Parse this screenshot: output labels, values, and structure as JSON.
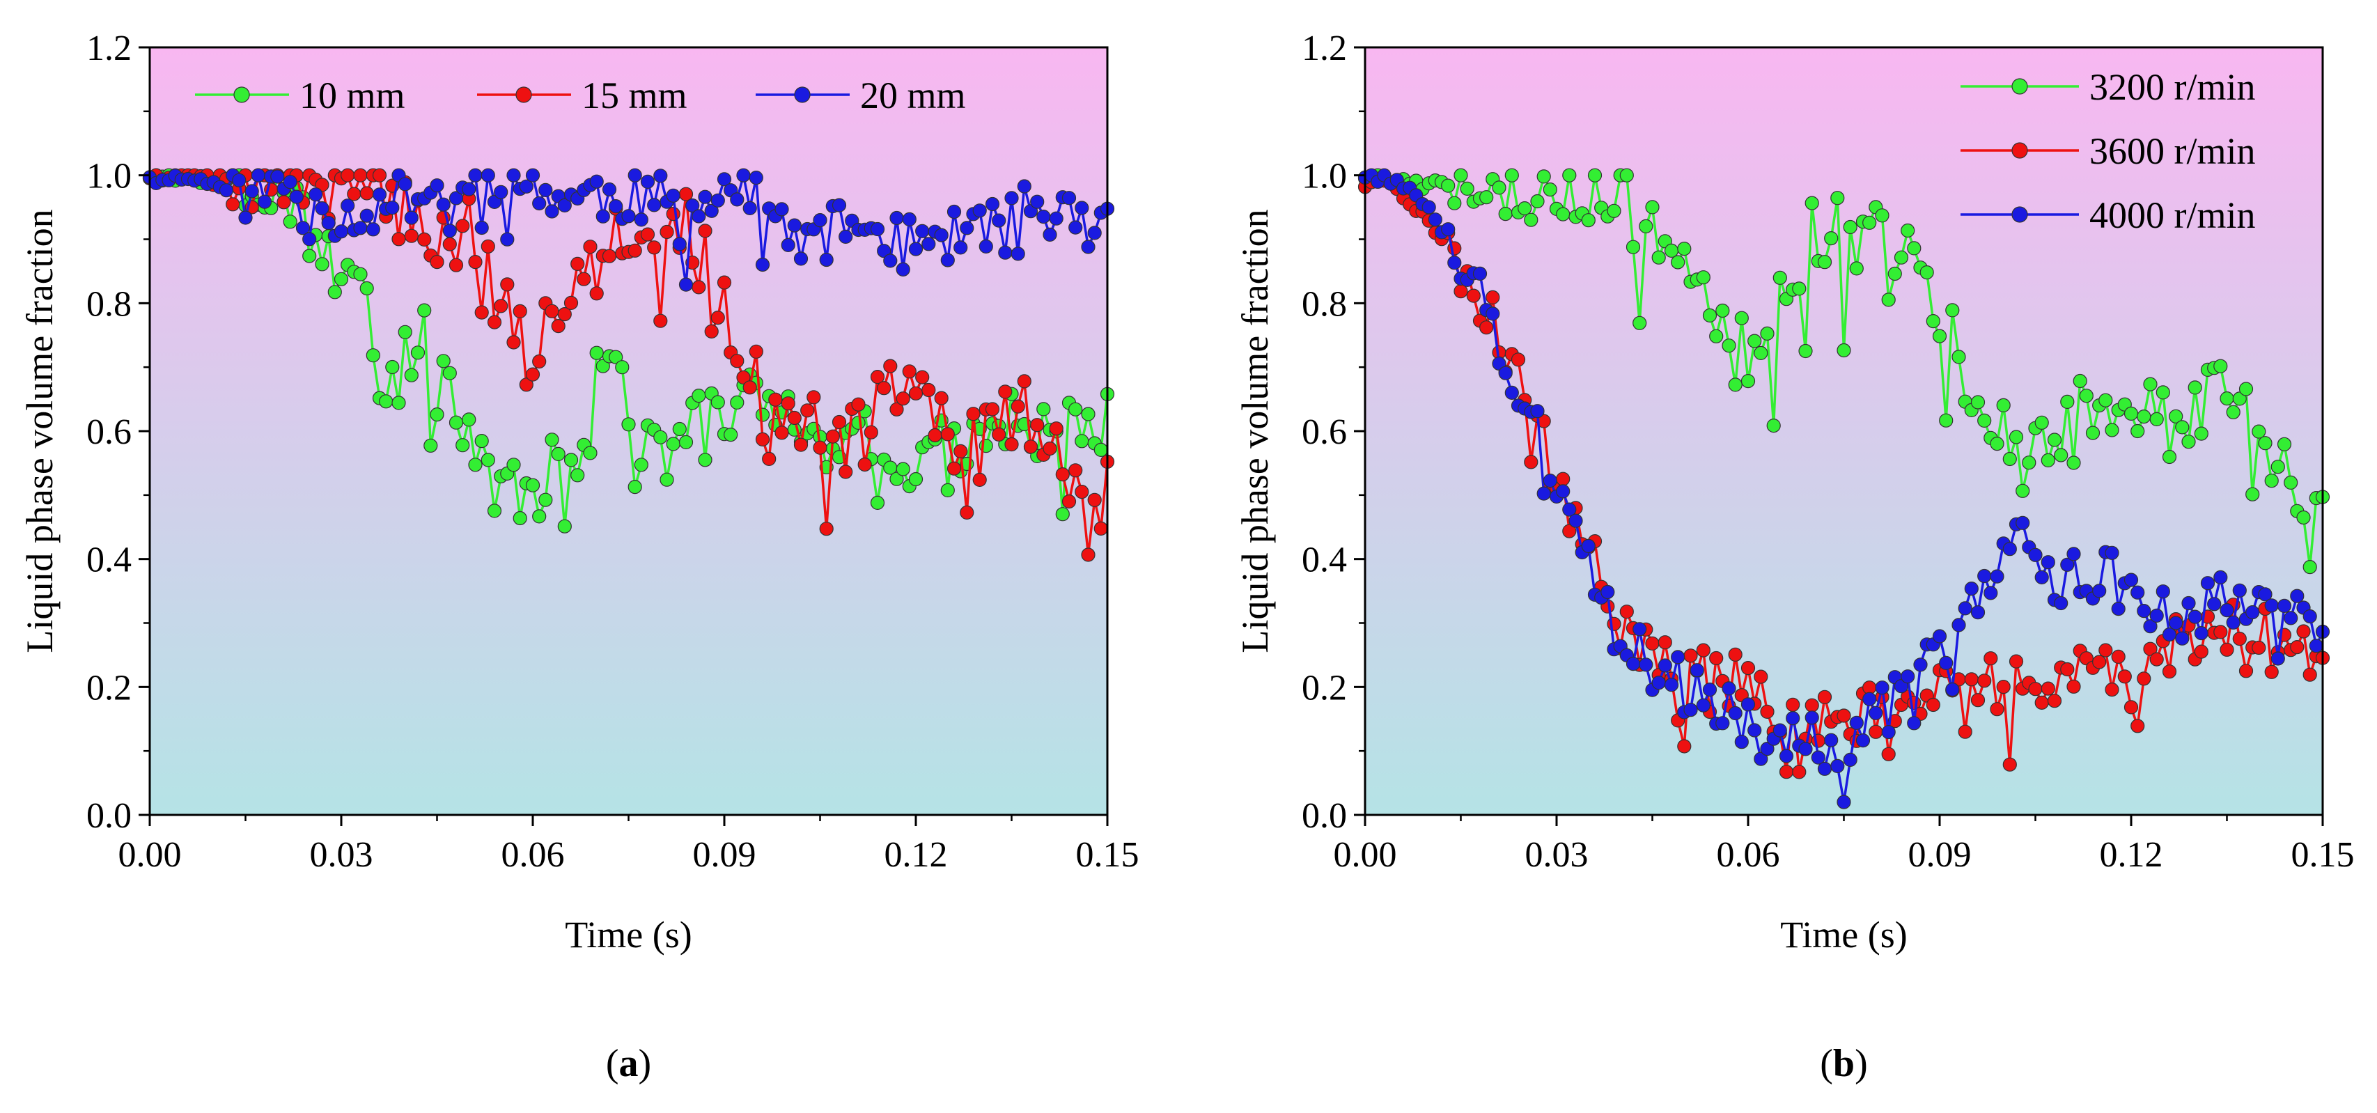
{
  "figure": {
    "panels": [
      "a",
      "b"
    ]
  },
  "colors": {
    "green": "#33ee33",
    "red": "#ee1111",
    "blue": "#1a1ae0",
    "bg_top": "#f8b7f1",
    "bg_bottom": "#b5e3e6"
  },
  "chart_data": [
    {
      "type": "line",
      "panel_label": "(a)",
      "panel_letter": "a",
      "title": "",
      "xlabel": "Time (s)",
      "ylabel": "Liquid phase volume fraction",
      "xlim": [
        0,
        0.15
      ],
      "ylim": [
        0,
        1.2
      ],
      "xticks": [
        "0.00",
        "0.03",
        "0.06",
        "0.09",
        "0.12",
        "0.15"
      ],
      "yticks": [
        "0.0",
        "0.2",
        "0.4",
        "0.6",
        "0.8",
        "1.0",
        "1.2"
      ],
      "legend_position": "top-left, horizontal",
      "series": [
        {
          "name": "10 mm",
          "color": "green",
          "anchors": [
            [
              0,
              1.0
            ],
            [
              0.005,
              1.0
            ],
            [
              0.01,
              0.99
            ],
            [
              0.015,
              1.0
            ],
            [
              0.02,
              0.98
            ],
            [
              0.025,
              0.95
            ],
            [
              0.028,
              0.85
            ],
            [
              0.03,
              0.88
            ],
            [
              0.033,
              0.84
            ],
            [
              0.036,
              0.68
            ],
            [
              0.038,
              0.65
            ],
            [
              0.04,
              0.72
            ],
            [
              0.043,
              0.73
            ],
            [
              0.046,
              0.66
            ],
            [
              0.05,
              0.58
            ],
            [
              0.053,
              0.55
            ],
            [
              0.056,
              0.5
            ],
            [
              0.058,
              0.52
            ],
            [
              0.06,
              0.47
            ],
            [
              0.062,
              0.55
            ],
            [
              0.065,
              0.5
            ],
            [
              0.068,
              0.6
            ],
            [
              0.07,
              0.72
            ],
            [
              0.073,
              0.7
            ],
            [
              0.076,
              0.6
            ],
            [
              0.08,
              0.55
            ],
            [
              0.083,
              0.58
            ],
            [
              0.086,
              0.62
            ],
            [
              0.09,
              0.6
            ],
            [
              0.093,
              0.66
            ],
            [
              0.096,
              0.64
            ],
            [
              0.1,
              0.63
            ],
            [
              0.104,
              0.58
            ],
            [
              0.108,
              0.55
            ],
            [
              0.112,
              0.6
            ],
            [
              0.116,
              0.58
            ],
            [
              0.12,
              0.55
            ],
            [
              0.125,
              0.56
            ],
            [
              0.13,
              0.6
            ],
            [
              0.135,
              0.62
            ],
            [
              0.14,
              0.6
            ],
            [
              0.145,
              0.62
            ],
            [
              0.15,
              0.6
            ]
          ],
          "amp": 0.06,
          "seed": 3
        },
        {
          "name": "15 mm",
          "color": "red",
          "anchors": [
            [
              0,
              1.0
            ],
            [
              0.01,
              1.0
            ],
            [
              0.02,
              1.0
            ],
            [
              0.03,
              0.99
            ],
            [
              0.035,
              0.97
            ],
            [
              0.04,
              0.95
            ],
            [
              0.045,
              0.9
            ],
            [
              0.048,
              0.93
            ],
            [
              0.05,
              0.92
            ],
            [
              0.053,
              0.85
            ],
            [
              0.056,
              0.78
            ],
            [
              0.06,
              0.72
            ],
            [
              0.063,
              0.78
            ],
            [
              0.066,
              0.85
            ],
            [
              0.07,
              0.9
            ],
            [
              0.075,
              0.93
            ],
            [
              0.08,
              0.9
            ],
            [
              0.085,
              0.92
            ],
            [
              0.09,
              0.78
            ],
            [
              0.093,
              0.74
            ],
            [
              0.096,
              0.64
            ],
            [
              0.1,
              0.6
            ],
            [
              0.104,
              0.63
            ],
            [
              0.108,
              0.57
            ],
            [
              0.112,
              0.62
            ],
            [
              0.116,
              0.66
            ],
            [
              0.12,
              0.67
            ],
            [
              0.124,
              0.62
            ],
            [
              0.128,
              0.56
            ],
            [
              0.132,
              0.6
            ],
            [
              0.136,
              0.65
            ],
            [
              0.14,
              0.6
            ],
            [
              0.144,
              0.52
            ],
            [
              0.147,
              0.45
            ],
            [
              0.15,
              0.5
            ]
          ],
          "amp": 0.06,
          "seed": 7
        },
        {
          "name": "20 mm",
          "color": "blue",
          "anchors": [
            [
              0,
              1.0
            ],
            [
              0.01,
              0.99
            ],
            [
              0.015,
              0.97
            ],
            [
              0.02,
              0.98
            ],
            [
              0.025,
              0.99
            ],
            [
              0.03,
              0.93
            ],
            [
              0.035,
              0.95
            ],
            [
              0.04,
              0.97
            ],
            [
              0.05,
              0.98
            ],
            [
              0.06,
              0.99
            ],
            [
              0.065,
              0.96
            ],
            [
              0.07,
              0.97
            ],
            [
              0.08,
              0.96
            ],
            [
              0.085,
              0.95
            ],
            [
              0.09,
              0.98
            ],
            [
              0.095,
              0.97
            ],
            [
              0.1,
              0.9
            ],
            [
              0.105,
              0.9
            ],
            [
              0.11,
              0.93
            ],
            [
              0.115,
              0.9
            ],
            [
              0.12,
              0.92
            ],
            [
              0.125,
              0.9
            ],
            [
              0.13,
              0.92
            ],
            [
              0.135,
              0.94
            ],
            [
              0.14,
              0.95
            ],
            [
              0.145,
              0.93
            ],
            [
              0.15,
              0.92
            ]
          ],
          "amp": 0.04,
          "seed": 11
        }
      ]
    },
    {
      "type": "line",
      "panel_label": "(b)",
      "panel_letter": "b",
      "title": "",
      "xlabel": "Time (s)",
      "ylabel": "Liquid phase volume fraction",
      "xlim": [
        0,
        0.15
      ],
      "ylim": [
        0,
        1.2
      ],
      "xticks": [
        "0.00",
        "0.03",
        "0.06",
        "0.09",
        "0.12",
        "0.15"
      ],
      "yticks": [
        "0.0",
        "0.2",
        "0.4",
        "0.6",
        "0.8",
        "1.0",
        "1.2"
      ],
      "legend_position": "top-right, vertical",
      "series": [
        {
          "name": "3200 r/min",
          "color": "green",
          "anchors": [
            [
              0,
              1.0
            ],
            [
              0.01,
              0.99
            ],
            [
              0.02,
              0.99
            ],
            [
              0.03,
              0.99
            ],
            [
              0.035,
              0.98
            ],
            [
              0.04,
              0.97
            ],
            [
              0.043,
              0.9
            ],
            [
              0.046,
              0.92
            ],
            [
              0.05,
              0.88
            ],
            [
              0.053,
              0.85
            ],
            [
              0.056,
              0.74
            ],
            [
              0.058,
              0.7
            ],
            [
              0.06,
              0.75
            ],
            [
              0.063,
              0.72
            ],
            [
              0.066,
              0.82
            ],
            [
              0.07,
              0.9
            ],
            [
              0.073,
              0.93
            ],
            [
              0.076,
              0.9
            ],
            [
              0.08,
              0.92
            ],
            [
              0.084,
              0.9
            ],
            [
              0.088,
              0.82
            ],
            [
              0.09,
              0.78
            ],
            [
              0.093,
              0.72
            ],
            [
              0.096,
              0.62
            ],
            [
              0.1,
              0.6
            ],
            [
              0.104,
              0.55
            ],
            [
              0.108,
              0.58
            ],
            [
              0.112,
              0.62
            ],
            [
              0.116,
              0.65
            ],
            [
              0.12,
              0.66
            ],
            [
              0.124,
              0.62
            ],
            [
              0.128,
              0.6
            ],
            [
              0.132,
              0.65
            ],
            [
              0.136,
              0.68
            ],
            [
              0.14,
              0.6
            ],
            [
              0.144,
              0.55
            ],
            [
              0.148,
              0.5
            ],
            [
              0.15,
              0.48
            ]
          ],
          "amp": 0.06,
          "seed": 5
        },
        {
          "name": "3600 r/min",
          "color": "red",
          "anchors": [
            [
              0,
              1.0
            ],
            [
              0.005,
              0.98
            ],
            [
              0.01,
              0.93
            ],
            [
              0.015,
              0.86
            ],
            [
              0.02,
              0.78
            ],
            [
              0.025,
              0.65
            ],
            [
              0.03,
              0.52
            ],
            [
              0.035,
              0.4
            ],
            [
              0.04,
              0.32
            ],
            [
              0.045,
              0.25
            ],
            [
              0.05,
              0.22
            ],
            [
              0.055,
              0.22
            ],
            [
              0.06,
              0.2
            ],
            [
              0.065,
              0.16
            ],
            [
              0.07,
              0.14
            ],
            [
              0.075,
              0.14
            ],
            [
              0.08,
              0.17
            ],
            [
              0.085,
              0.2
            ],
            [
              0.09,
              0.2
            ],
            [
              0.095,
              0.21
            ],
            [
              0.1,
              0.21
            ],
            [
              0.105,
              0.2
            ],
            [
              0.11,
              0.22
            ],
            [
              0.115,
              0.25
            ],
            [
              0.12,
              0.22
            ],
            [
              0.125,
              0.26
            ],
            [
              0.13,
              0.27
            ],
            [
              0.135,
              0.3
            ],
            [
              0.14,
              0.28
            ],
            [
              0.145,
              0.27
            ],
            [
              0.15,
              0.25
            ]
          ],
          "amp": 0.045,
          "seed": 9
        },
        {
          "name": "4000 r/min",
          "color": "blue",
          "anchors": [
            [
              0,
              1.0
            ],
            [
              0.005,
              0.99
            ],
            [
              0.01,
              0.95
            ],
            [
              0.015,
              0.88
            ],
            [
              0.02,
              0.77
            ],
            [
              0.025,
              0.65
            ],
            [
              0.03,
              0.5
            ],
            [
              0.035,
              0.38
            ],
            [
              0.04,
              0.3
            ],
            [
              0.045,
              0.24
            ],
            [
              0.05,
              0.2
            ],
            [
              0.055,
              0.17
            ],
            [
              0.06,
              0.14
            ],
            [
              0.065,
              0.12
            ],
            [
              0.07,
              0.11
            ],
            [
              0.075,
              0.12
            ],
            [
              0.08,
              0.15
            ],
            [
              0.085,
              0.19
            ],
            [
              0.09,
              0.25
            ],
            [
              0.095,
              0.33
            ],
            [
              0.1,
              0.38
            ],
            [
              0.104,
              0.45
            ],
            [
              0.108,
              0.38
            ],
            [
              0.112,
              0.36
            ],
            [
              0.116,
              0.4
            ],
            [
              0.12,
              0.33
            ],
            [
              0.125,
              0.32
            ],
            [
              0.13,
              0.33
            ],
            [
              0.135,
              0.35
            ],
            [
              0.14,
              0.32
            ],
            [
              0.145,
              0.3
            ],
            [
              0.15,
              0.32
            ]
          ],
          "amp": 0.045,
          "seed": 13
        }
      ]
    }
  ]
}
